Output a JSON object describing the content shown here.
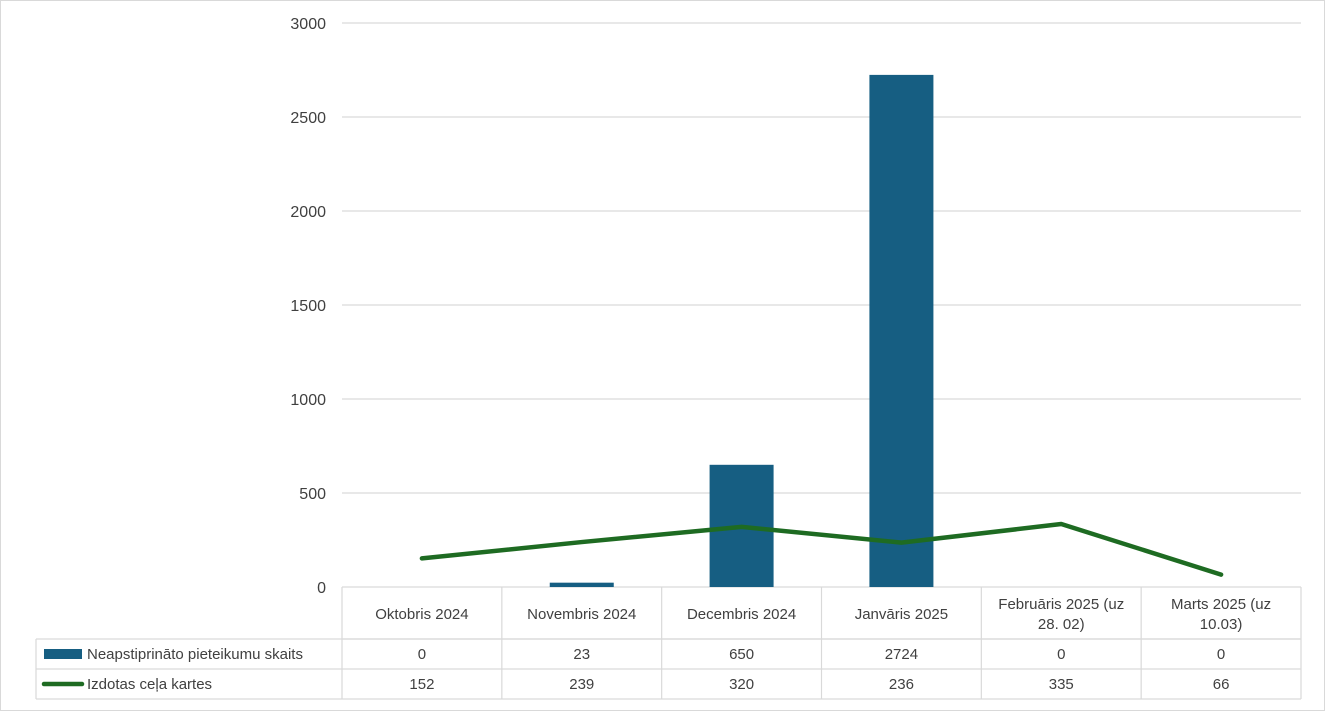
{
  "chart_data": {
    "type": "bar",
    "categories": [
      [
        "Oktobris 2024"
      ],
      [
        "Novembris 2024"
      ],
      [
        "Decembris 2024"
      ],
      [
        "Janvāris 2025"
      ],
      [
        "Februāris 2025 (uz",
        "28. 02)"
      ],
      [
        "Marts 2025 (uz",
        "10.03)"
      ]
    ],
    "series": [
      {
        "name": "Neapstiprināto pieteikumu skaits",
        "type": "bar",
        "values": [
          0,
          23,
          650,
          2724,
          0,
          0
        ],
        "color": "#165e82"
      },
      {
        "name": "Izdotas ceļa kartes",
        "type": "line",
        "values": [
          152,
          239,
          320,
          236,
          335,
          66
        ],
        "color": "#1e6b22"
      }
    ],
    "ylim": [
      0,
      3000
    ],
    "yticks": [
      0,
      500,
      1000,
      1500,
      2000,
      2500,
      3000
    ],
    "grid": true,
    "legend": "data-table-below",
    "title": "",
    "xlabel": "",
    "ylabel": ""
  }
}
